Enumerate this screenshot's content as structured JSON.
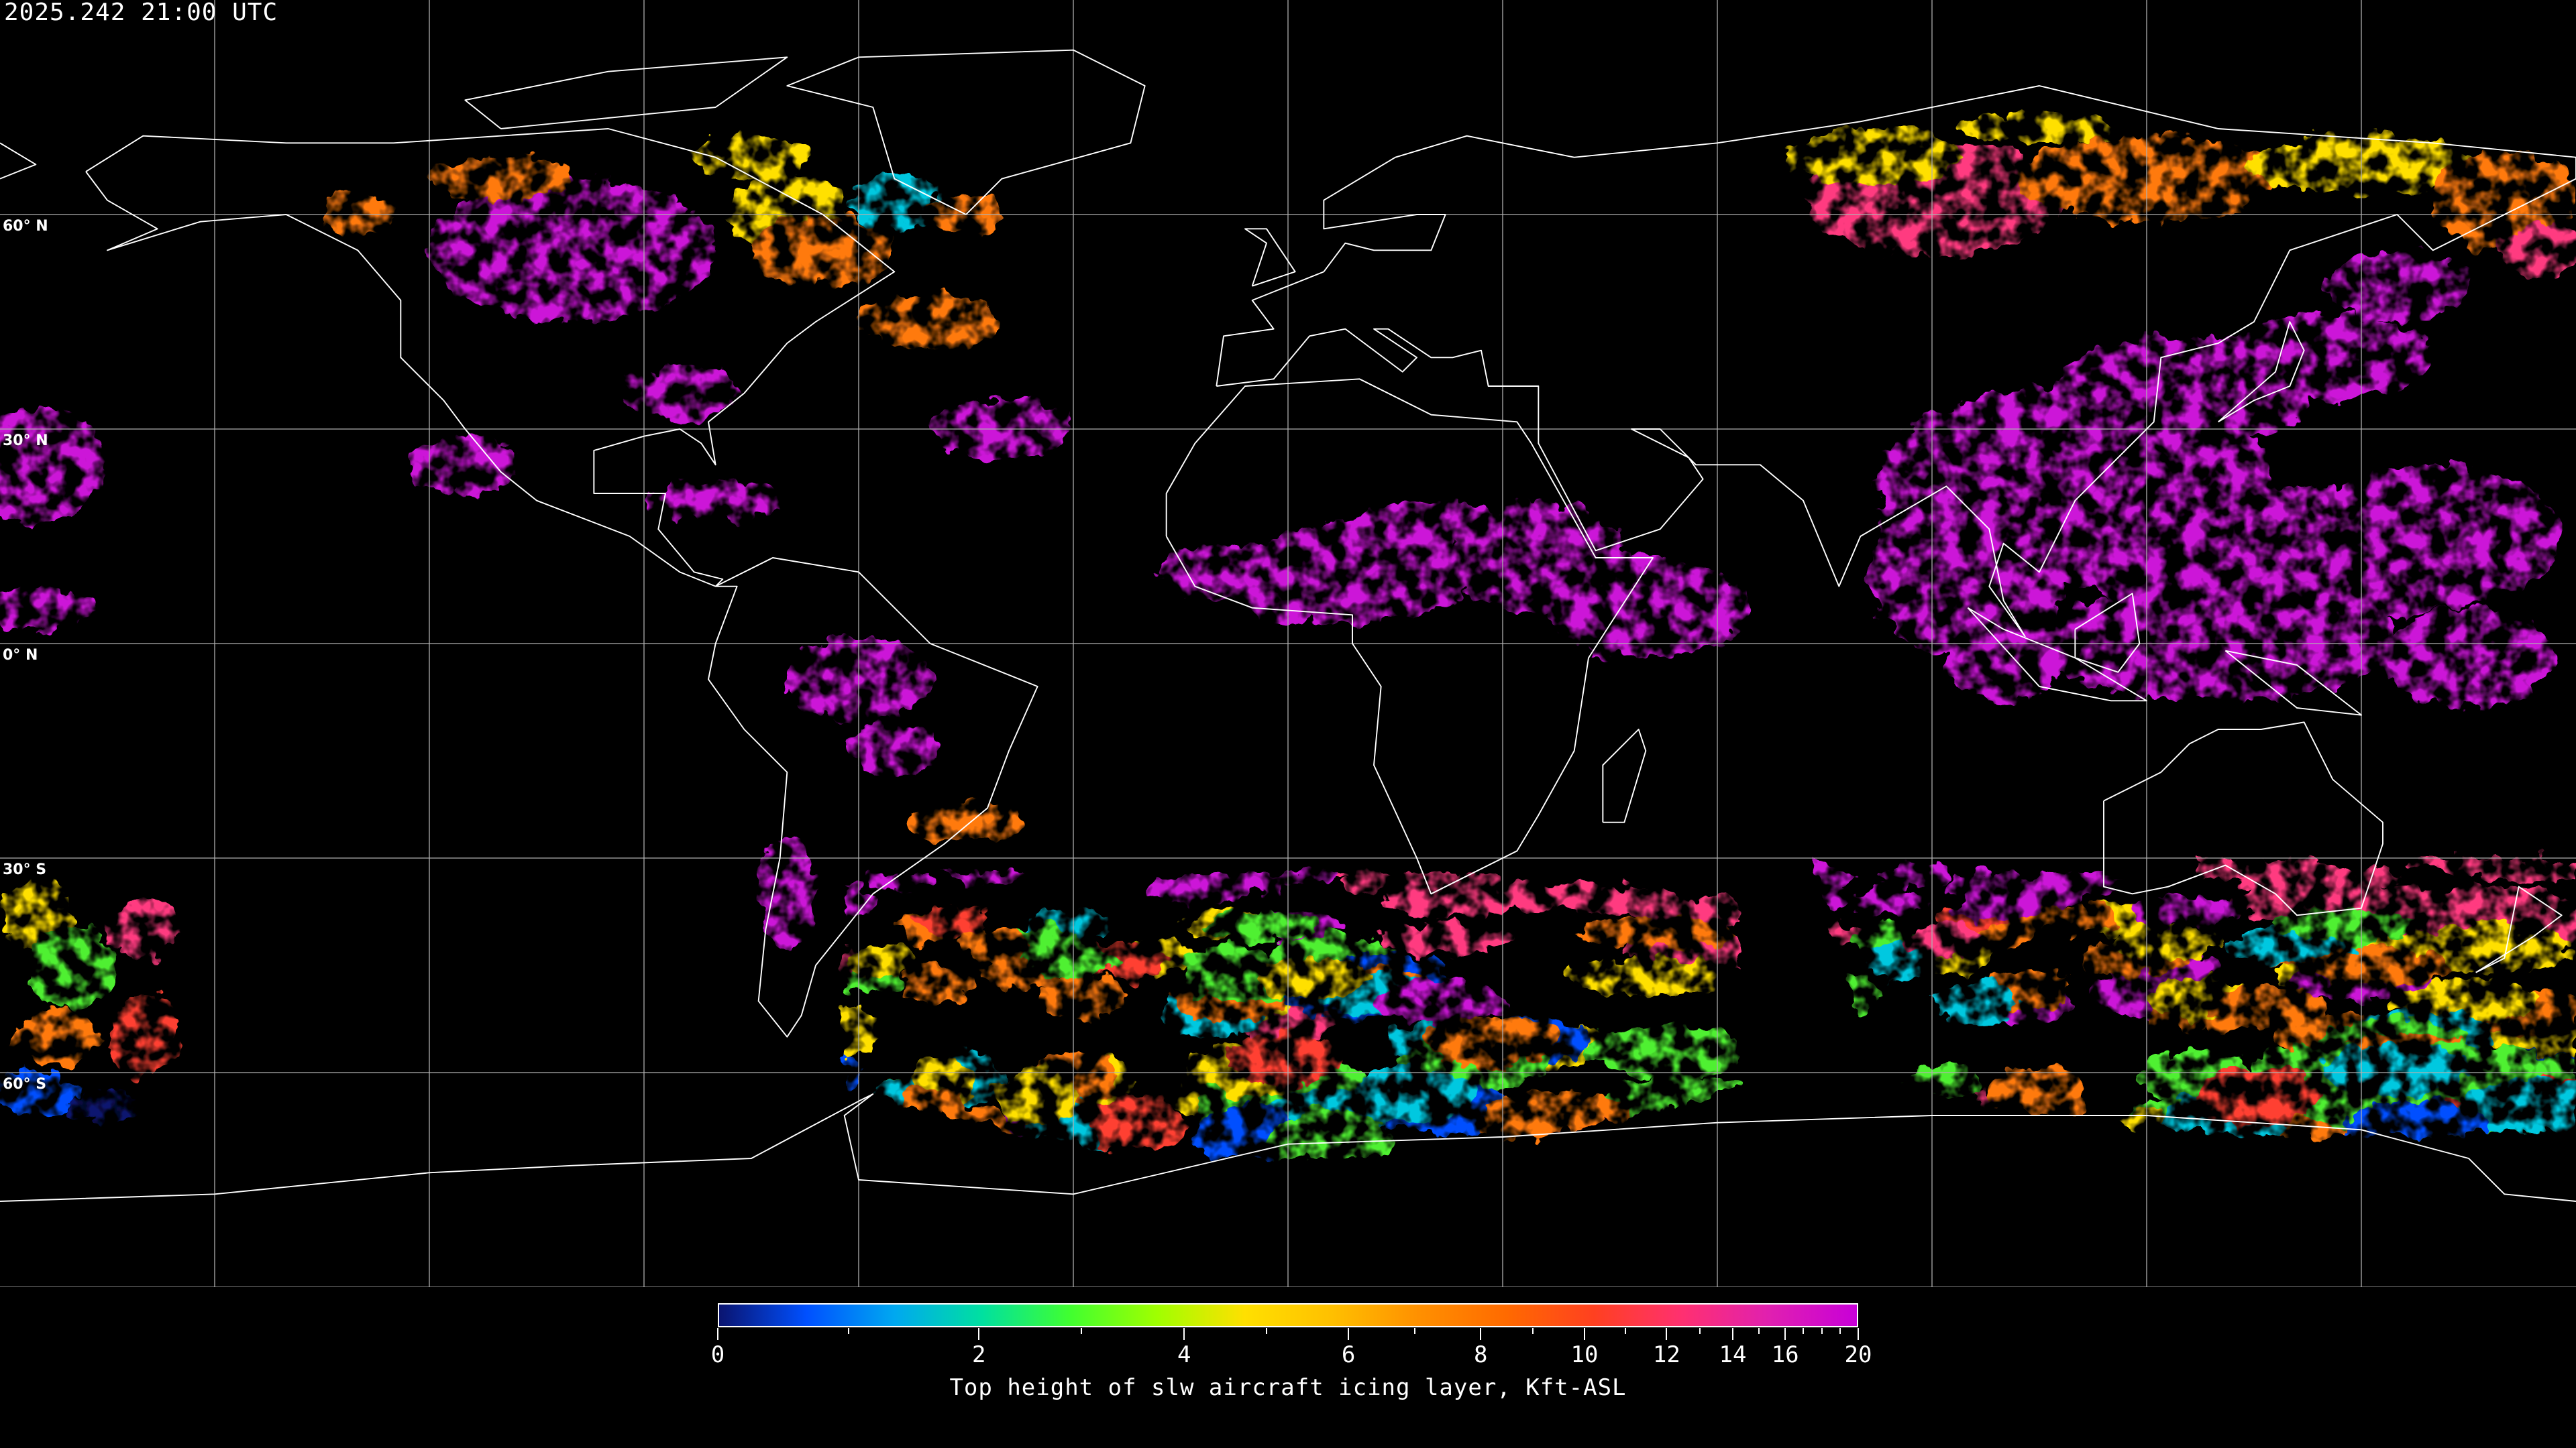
{
  "header": {
    "timestamp": "2025.242 21:00 UTC"
  },
  "map": {
    "projection": "equirectangular",
    "graticule_spacing_deg": 30,
    "lat_labels": [
      "60° N",
      "30° N",
      "0° N",
      "30° S",
      "60° S"
    ],
    "background": "#000000",
    "coastline_color": "#ffffff",
    "grid_color": "#b0b0b0"
  },
  "colorbar": {
    "label": "Top height of slw aircraft icing layer, Kft-ASL",
    "min": 0,
    "max": 20,
    "tick_labels": [
      "0",
      "2",
      "4",
      "6",
      "8",
      "10",
      "12",
      "14",
      "16",
      "20"
    ],
    "minor_ticks": [
      1,
      3,
      5,
      7,
      9,
      11,
      13,
      15,
      17,
      18,
      19
    ],
    "colors": [
      "#0a1470",
      "#0050ff",
      "#00a8f0",
      "#00e0a0",
      "#40ff30",
      "#a0ff00",
      "#ffe000",
      "#ffc000",
      "#ff9000",
      "#ff6a00",
      "#ff4020",
      "#ff3070",
      "#e020b0",
      "#c800d8"
    ]
  }
}
